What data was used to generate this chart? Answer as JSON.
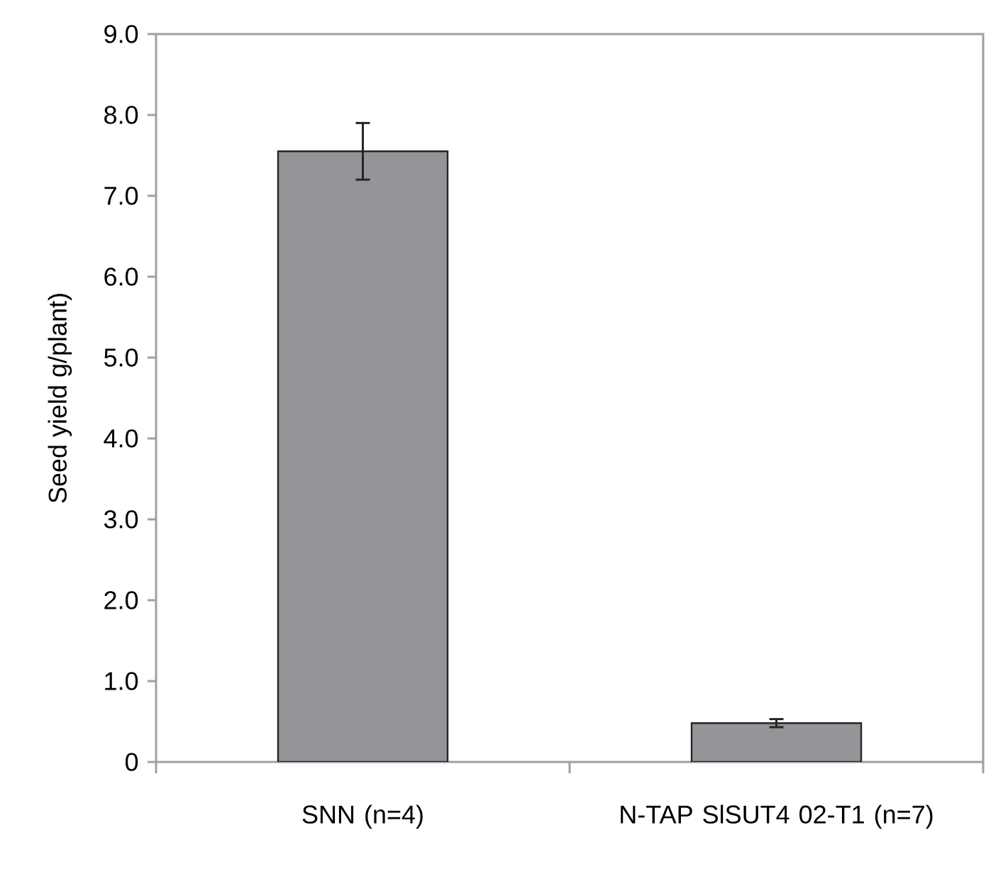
{
  "chart_data": {
    "type": "bar",
    "ylabel": "Seed yield g/plant)",
    "categories": [
      "SNN (n=4)",
      "N-TAP SlSUT4 02-T1 (n=7)"
    ],
    "values": [
      7.55,
      0.48
    ],
    "errors": [
      0.35,
      0.05
    ],
    "color": "#939598",
    "ylim": [
      0,
      9
    ],
    "yticks": [
      {
        "value": 0,
        "label": "0"
      },
      {
        "value": 1,
        "label": "1.0"
      },
      {
        "value": 2,
        "label": "2.0"
      },
      {
        "value": 3,
        "label": "3.0"
      },
      {
        "value": 4,
        "label": "4.0"
      },
      {
        "value": 5,
        "label": "5.0"
      },
      {
        "value": 6,
        "label": "6.0"
      },
      {
        "value": 7,
        "label": "7.0"
      },
      {
        "value": 8,
        "label": "8.0"
      },
      {
        "value": 9,
        "label": "9.0"
      }
    ],
    "grid": false
  }
}
